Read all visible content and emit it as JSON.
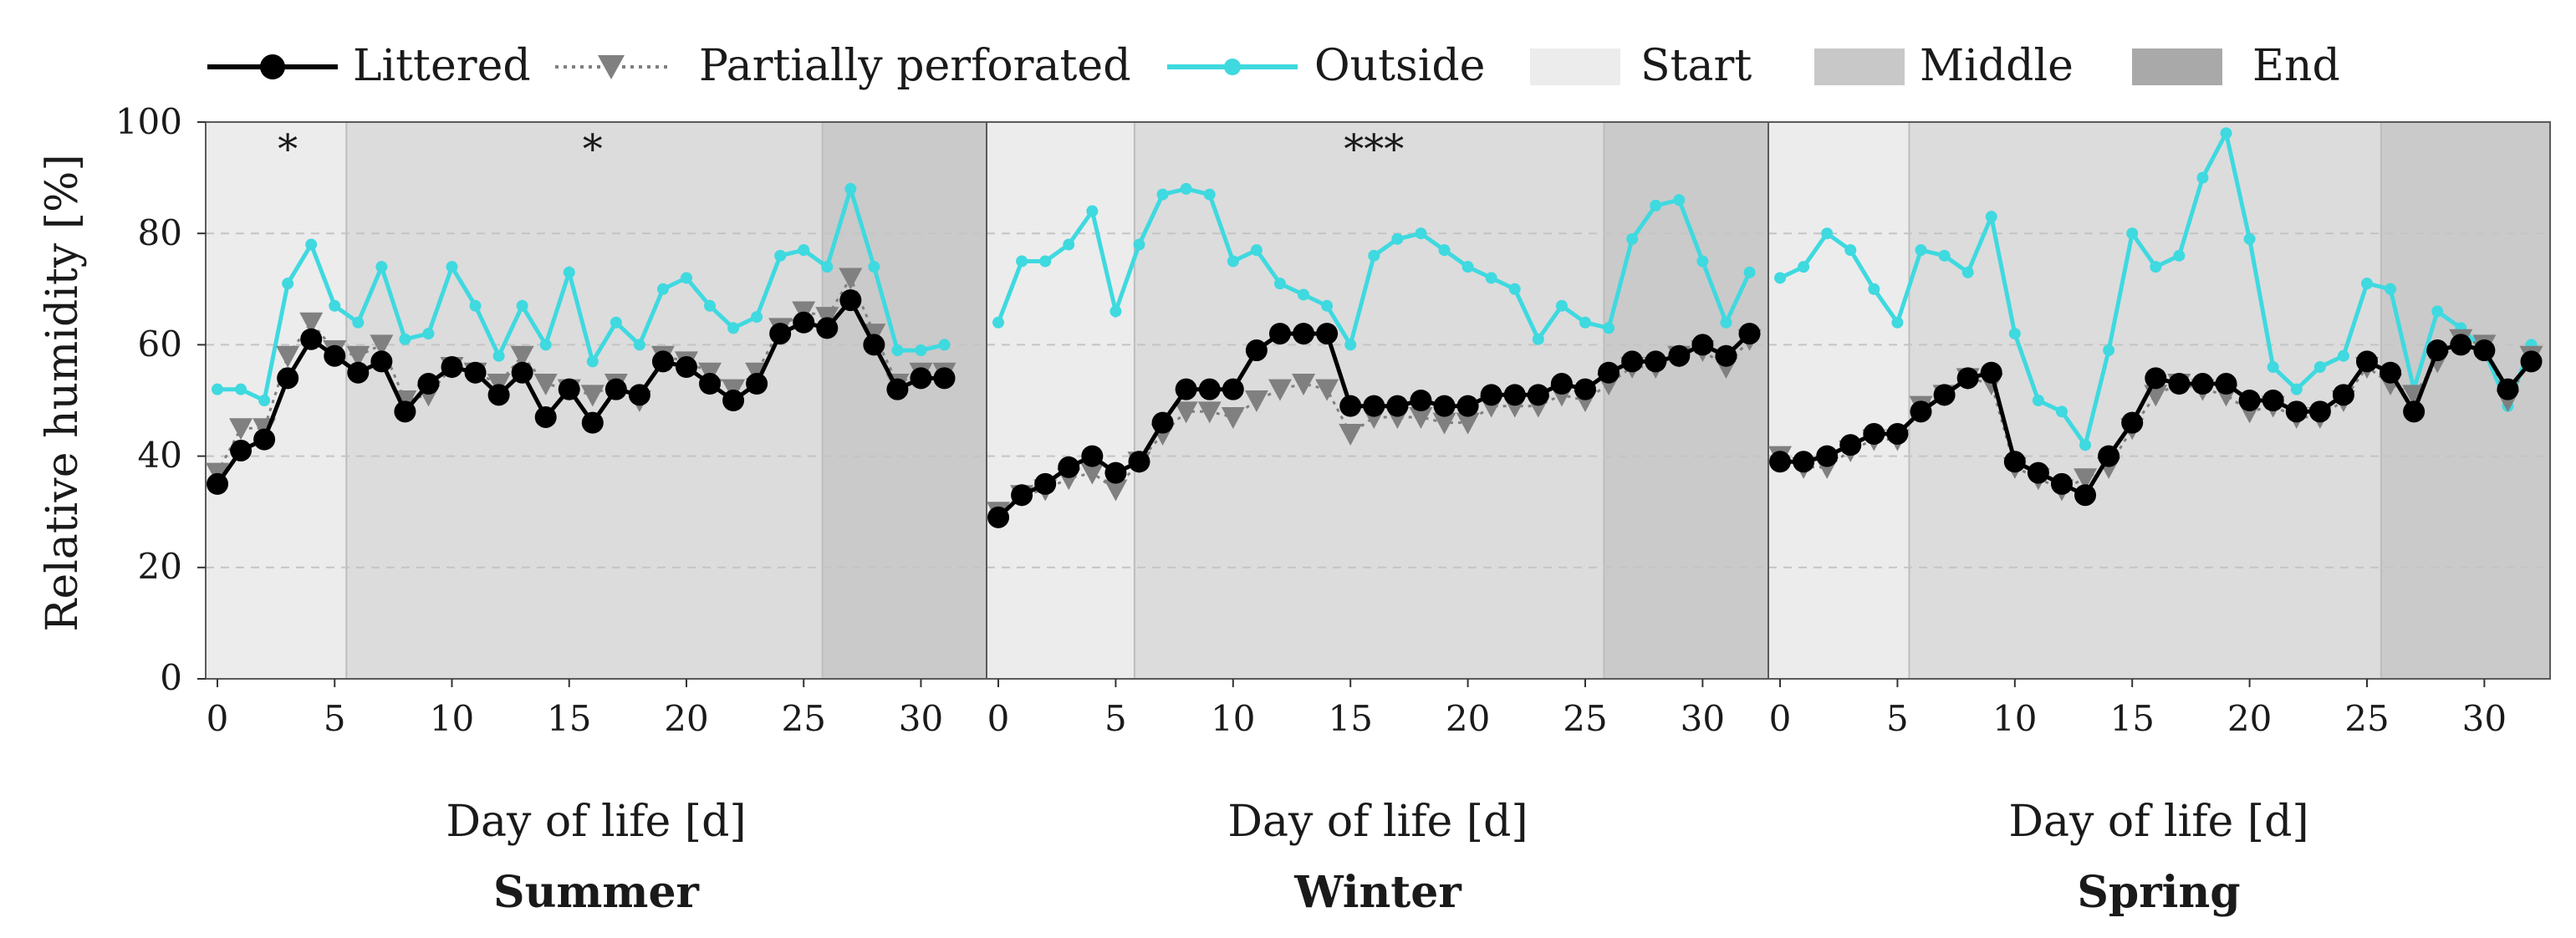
{
  "legend": {
    "littered": "Littered",
    "perforated": "Partially perforated",
    "outside": "Outside",
    "start": "Start",
    "middle": "Middle",
    "end": "End"
  },
  "colors": {
    "littered": "#000000",
    "perforated": "#808080",
    "outside": "#3fd9e0",
    "start": "#ececec",
    "middle": "#dcdcdc",
    "end": "#cacaca",
    "grid": "#c4c4c4"
  },
  "y_axis": {
    "label": "Relative humidity [%]",
    "ticks": [
      "0",
      "20",
      "40",
      "60",
      "80",
      "100"
    ]
  },
  "chart_data": [
    {
      "type": "line",
      "title": "Summer",
      "xlabel": "Day of life [d]",
      "ylabel": "Relative humidity [%]",
      "xlim": [
        -0.5,
        32.8
      ],
      "ylim": [
        0,
        100
      ],
      "x_ticks": [
        "0",
        "5",
        "10",
        "15",
        "20",
        "25",
        "30"
      ],
      "phases": [
        {
          "name": "Start",
          "from": -0.5,
          "to": 5.5
        },
        {
          "name": "Middle",
          "from": 5.5,
          "to": 25.8
        },
        {
          "name": "End",
          "from": 25.8,
          "to": 32.8
        }
      ],
      "annotations": [
        {
          "text": "*",
          "x": 3,
          "y": 96
        },
        {
          "text": "*",
          "x": 16,
          "y": 96
        }
      ],
      "series": [
        {
          "name": "Littered",
          "x": [
            0,
            1,
            2,
            3,
            4,
            5,
            6,
            7,
            8,
            9,
            10,
            11,
            12,
            13,
            14,
            15,
            16,
            17,
            18,
            19,
            20,
            21,
            22,
            23,
            24,
            25,
            26,
            27,
            28,
            29,
            30,
            31
          ],
          "values": [
            35,
            41,
            43,
            54,
            61,
            58,
            55,
            57,
            48,
            53,
            56,
            55,
            51,
            55,
            47,
            52,
            46,
            52,
            51,
            57,
            56,
            53,
            50,
            53,
            62,
            64,
            63,
            68,
            60,
            52,
            54,
            54
          ]
        },
        {
          "name": "Partially perforated",
          "x": [
            0,
            1,
            2,
            3,
            4,
            5,
            6,
            7,
            8,
            9,
            10,
            11,
            12,
            13,
            14,
            15,
            16,
            17,
            18,
            19,
            20,
            21,
            22,
            23,
            24,
            25,
            26,
            27,
            28,
            29,
            30,
            31
          ],
          "values": [
            37,
            45,
            45,
            58,
            64,
            59,
            58,
            60,
            50,
            51,
            56,
            55,
            53,
            58,
            53,
            52,
            51,
            53,
            50,
            58,
            57,
            55,
            52,
            55,
            63,
            66,
            65,
            72,
            62,
            53,
            55,
            55
          ]
        },
        {
          "name": "Outside",
          "x": [
            0,
            1,
            2,
            3,
            4,
            5,
            6,
            7,
            8,
            9,
            10,
            11,
            12,
            13,
            14,
            15,
            16,
            17,
            18,
            19,
            20,
            21,
            22,
            23,
            24,
            25,
            26,
            27,
            28,
            29,
            30,
            31
          ],
          "values": [
            52,
            52,
            50,
            71,
            78,
            67,
            64,
            74,
            61,
            62,
            74,
            67,
            58,
            67,
            60,
            73,
            57,
            64,
            60,
            70,
            72,
            67,
            63,
            65,
            76,
            77,
            74,
            88,
            74,
            59,
            59,
            60
          ]
        }
      ]
    },
    {
      "type": "line",
      "title": "Winter",
      "xlabel": "Day of life [d]",
      "ylabel": "Relative humidity [%]",
      "xlim": [
        -0.5,
        32.8
      ],
      "ylim": [
        0,
        100
      ],
      "x_ticks": [
        "0",
        "5",
        "10",
        "15",
        "20",
        "25",
        "30"
      ],
      "phases": [
        {
          "name": "Start",
          "from": -0.5,
          "to": 5.8
        },
        {
          "name": "Middle",
          "from": 5.8,
          "to": 25.8
        },
        {
          "name": "End",
          "from": 25.8,
          "to": 32.8
        }
      ],
      "annotations": [
        {
          "text": "***",
          "x": 16,
          "y": 96
        }
      ],
      "series": [
        {
          "name": "Littered",
          "x": [
            0,
            1,
            2,
            3,
            4,
            5,
            6,
            7,
            8,
            9,
            10,
            11,
            12,
            13,
            14,
            15,
            16,
            17,
            18,
            19,
            20,
            21,
            22,
            23,
            24,
            25,
            26,
            27,
            28,
            29,
            30,
            31,
            32
          ],
          "values": [
            29,
            33,
            35,
            38,
            40,
            37,
            39,
            46,
            52,
            52,
            52,
            59,
            62,
            62,
            62,
            49,
            49,
            49,
            50,
            49,
            49,
            51,
            51,
            51,
            53,
            52,
            55,
            57,
            57,
            58,
            60,
            58,
            62
          ]
        },
        {
          "name": "Partially perforated",
          "x": [
            0,
            1,
            2,
            3,
            4,
            5,
            6,
            7,
            8,
            9,
            10,
            11,
            12,
            13,
            14,
            15,
            16,
            17,
            18,
            19,
            20,
            21,
            22,
            23,
            24,
            25,
            26,
            27,
            28,
            29,
            30,
            31,
            32
          ],
          "values": [
            30,
            33,
            34,
            36,
            37,
            34,
            39,
            44,
            48,
            48,
            47,
            50,
            52,
            53,
            52,
            44,
            47,
            47,
            47,
            46,
            46,
            49,
            49,
            49,
            51,
            50,
            53,
            56,
            56,
            58,
            59,
            56,
            61
          ]
        },
        {
          "name": "Outside",
          "x": [
            0,
            1,
            2,
            3,
            4,
            5,
            6,
            7,
            8,
            9,
            10,
            11,
            12,
            13,
            14,
            15,
            16,
            17,
            18,
            19,
            20,
            21,
            22,
            23,
            24,
            25,
            26,
            27,
            28,
            29,
            30,
            31,
            32
          ],
          "values": [
            64,
            75,
            75,
            78,
            84,
            66,
            78,
            87,
            88,
            87,
            75,
            77,
            71,
            69,
            67,
            60,
            76,
            79,
            80,
            77,
            74,
            72,
            70,
            61,
            67,
            64,
            63,
            79,
            85,
            86,
            75,
            64,
            73
          ]
        }
      ]
    },
    {
      "type": "line",
      "title": "Spring",
      "xlabel": "Day of life [d]",
      "ylabel": "Relative humidity [%]",
      "xlim": [
        -0.5,
        32.8
      ],
      "ylim": [
        0,
        100
      ],
      "x_ticks": [
        "0",
        "5",
        "10",
        "15",
        "20",
        "25",
        "30"
      ],
      "phases": [
        {
          "name": "Start",
          "from": -0.5,
          "to": 5.5
        },
        {
          "name": "Middle",
          "from": 5.5,
          "to": 25.6
        },
        {
          "name": "End",
          "from": 25.6,
          "to": 32.8
        }
      ],
      "annotations": [],
      "series": [
        {
          "name": "Littered",
          "x": [
            0,
            1,
            2,
            3,
            4,
            5,
            6,
            7,
            8,
            9,
            10,
            11,
            12,
            13,
            14,
            15,
            16,
            17,
            18,
            19,
            20,
            21,
            22,
            23,
            24,
            25,
            26,
            27,
            28,
            29,
            30,
            31,
            32
          ],
          "values": [
            39,
            39,
            40,
            42,
            44,
            44,
            48,
            51,
            54,
            55,
            39,
            37,
            35,
            33,
            40,
            46,
            54,
            53,
            53,
            53,
            50,
            50,
            48,
            48,
            51,
            57,
            55,
            48,
            59,
            60,
            59,
            52,
            57
          ]
        },
        {
          "name": "Partially perforated",
          "x": [
            0,
            1,
            2,
            3,
            4,
            5,
            6,
            7,
            8,
            9,
            10,
            11,
            12,
            13,
            14,
            15,
            16,
            17,
            18,
            19,
            20,
            21,
            22,
            23,
            24,
            25,
            26,
            27,
            28,
            29,
            30,
            31,
            32
          ],
          "values": [
            40,
            38,
            38,
            41,
            43,
            43,
            49,
            51,
            54,
            53,
            38,
            36,
            34,
            36,
            38,
            45,
            51,
            53,
            52,
            51,
            48,
            49,
            47,
            47,
            50,
            56,
            53,
            51,
            57,
            61,
            60,
            50,
            58
          ]
        },
        {
          "name": "Outside",
          "x": [
            0,
            1,
            2,
            3,
            4,
            5,
            6,
            7,
            8,
            9,
            10,
            11,
            12,
            13,
            14,
            15,
            16,
            17,
            18,
            19,
            20,
            21,
            22,
            23,
            24,
            25,
            26,
            27,
            28,
            29,
            30,
            31,
            32
          ],
          "values": [
            72,
            74,
            80,
            77,
            70,
            64,
            77,
            76,
            73,
            83,
            62,
            50,
            48,
            42,
            59,
            80,
            74,
            76,
            90,
            98,
            79,
            56,
            52,
            56,
            58,
            71,
            70,
            52,
            66,
            63,
            59,
            49,
            60
          ]
        }
      ]
    }
  ]
}
